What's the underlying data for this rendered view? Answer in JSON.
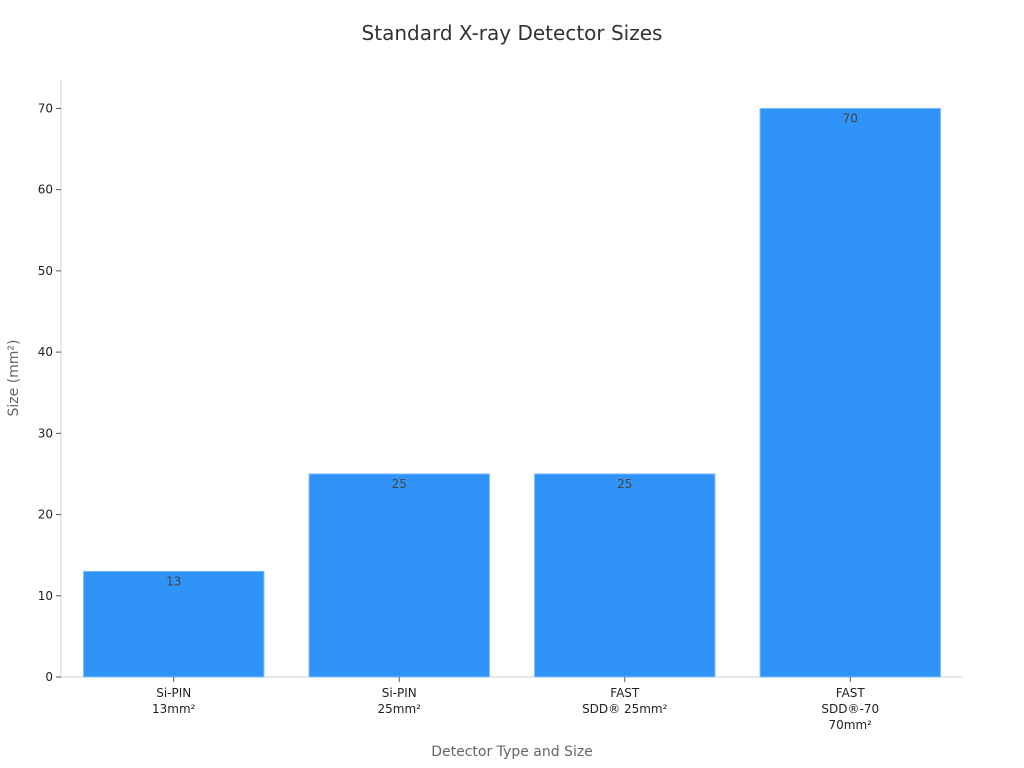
{
  "chart_data": {
    "type": "bar",
    "title": "Standard X-ray Detector Sizes",
    "xlabel": "Detector Type and Size",
    "ylabel": "Size (mm²)",
    "categories": [
      [
        "Si-PIN",
        "13mm²"
      ],
      [
        "Si-PIN",
        "25mm²"
      ],
      [
        "FAST",
        "SDD® 25mm²"
      ],
      [
        "FAST",
        "SDD®-70",
        "70mm²"
      ]
    ],
    "values": [
      13,
      25,
      25,
      70
    ],
    "data_labels": [
      "13",
      "25",
      "25",
      "70"
    ],
    "ylim": [
      0,
      73.5
    ],
    "yticks": [
      0,
      10,
      20,
      30,
      40,
      50,
      60,
      70
    ],
    "grid": false,
    "bar_color": "#2f93f7",
    "bar_edge_color": "#7fbcfa"
  }
}
